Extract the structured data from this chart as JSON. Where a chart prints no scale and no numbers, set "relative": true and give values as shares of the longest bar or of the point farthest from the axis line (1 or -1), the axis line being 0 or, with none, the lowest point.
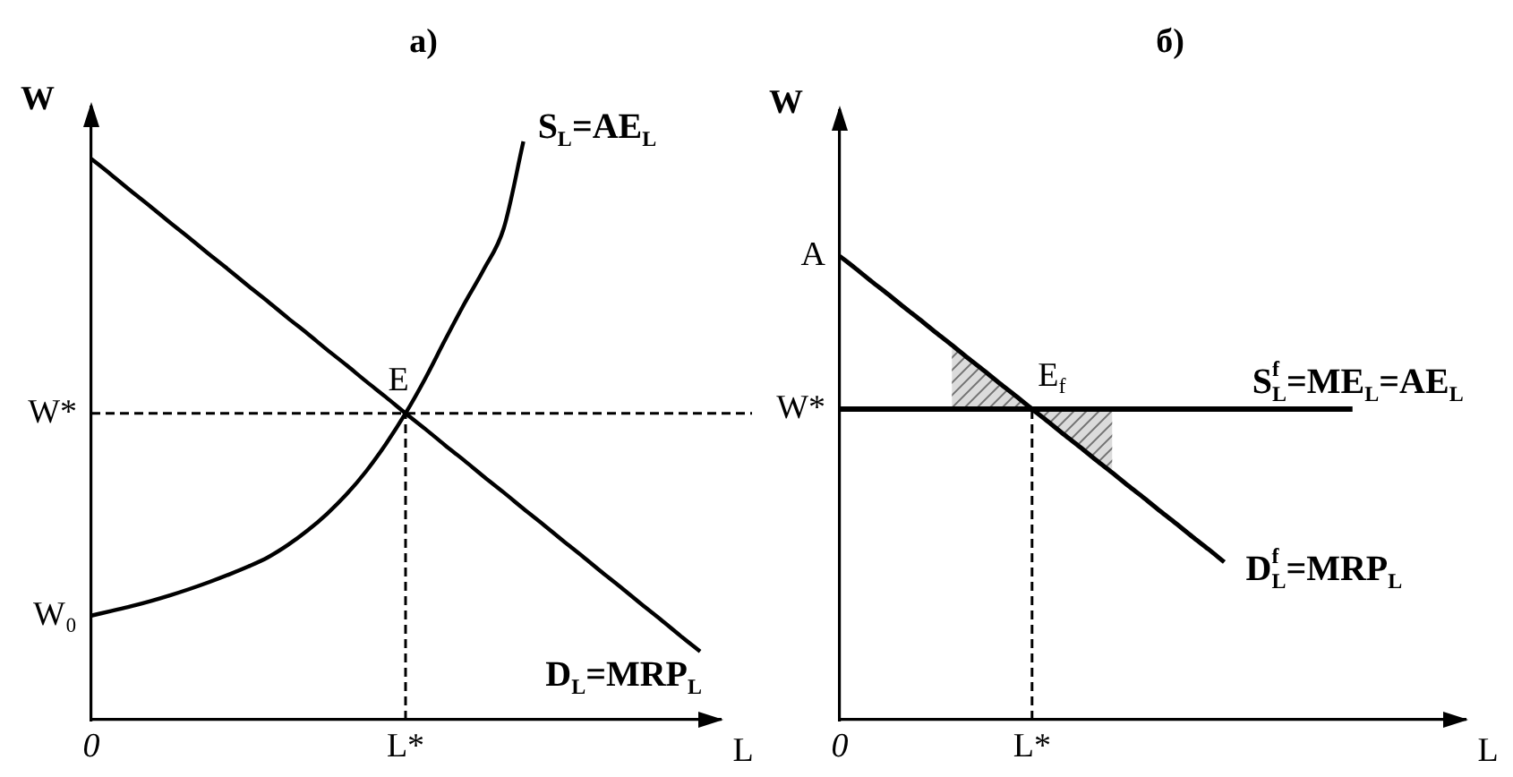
{
  "chart_data": [
    {
      "type": "line",
      "title": "а)",
      "xlabel": "L",
      "ylabel": "W",
      "relative": true,
      "marker": "none",
      "tick_labels": "x",
      "categories": [
        "0",
        null,
        null,
        null,
        null,
        null,
        null,
        null,
        null,
        null,
        null,
        null,
        null,
        null,
        null,
        null,
        "L*",
        null,
        null,
        null,
        null,
        null,
        null,
        null,
        null,
        null,
        null,
        null,
        null,
        null,
        null,
        null,
        null
      ],
      "series": [
        {
          "name": "S$_{L}$=AE$_{L}$",
          "color": "#000000",
          "values": [
            0.18,
            0.188,
            0.196,
            0.205,
            0.215,
            0.226,
            0.238,
            0.251,
            0.265,
            0.281,
            0.302,
            0.327,
            0.356,
            0.39,
            0.43,
            0.477,
            0.53,
            0.59,
            0.656,
            0.72,
            0.78,
            0.85,
            1,
            null,
            null,
            null,
            null,
            null,
            null,
            null,
            null,
            null,
            null
          ]
        },
        {
          "name": "D$_{L}$=MRP$_{L}$",
          "color": "#000000",
          "values": [
            0.97,
            0.943,
            0.915,
            0.888,
            0.86,
            0.833,
            0.805,
            0.778,
            0.75,
            0.723,
            0.695,
            0.668,
            0.64,
            0.613,
            0.585,
            0.558,
            0.53,
            0.503,
            0.475,
            0.448,
            0.42,
            0.393,
            0.365,
            0.338,
            0.31,
            0.283,
            0.255,
            0.228,
            0.2,
            0.173,
            0.145,
            0.118,
            null
          ]
        }
      ],
      "ref_lines": [
        {
          "axis": "y",
          "value": 0.53,
          "label": "W*",
          "line_style": "dashed"
        },
        {
          "axis": "x",
          "value": "L*",
          "line_style": "dashed"
        }
      ],
      "annotations": [
        {
          "text": "E",
          "x": "L*",
          "y": 0.53
        },
        {
          "text": "W₀",
          "x": "0",
          "y": 0.18
        }
      ]
    },
    {
      "type": "line",
      "title": "б)",
      "xlabel": "L",
      "ylabel": "W",
      "relative": true,
      "marker": "none",
      "tick_labels": "x",
      "categories": [
        "0",
        null,
        null,
        null,
        null,
        null,
        null,
        null,
        null,
        null,
        null,
        null,
        "L*",
        null,
        null,
        null,
        null,
        null,
        null,
        null,
        null,
        null,
        null,
        null,
        null,
        null,
        null,
        null,
        null,
        null,
        null,
        null,
        null,
        null,
        null,
        null,
        null,
        null,
        null,
        null
      ],
      "series": [
        {
          "name": "S$_{L}$$^{f}$=ME$_{L}$=AE$_{L}$",
          "color": "#000000",
          "values": [
            0.67,
            0.67,
            0.67,
            0.67,
            0.67,
            0.67,
            0.67,
            0.67,
            0.67,
            0.67,
            0.67,
            0.67,
            0.67,
            0.67,
            0.67,
            0.67,
            0.67,
            0.67,
            0.67,
            0.67,
            0.67,
            0.67,
            0.67,
            0.67,
            0.67,
            0.67,
            0.67,
            0.67,
            0.67,
            0.67,
            0.67,
            0.67,
            0.67,
            null,
            null,
            null,
            null,
            null,
            null,
            null
          ],
          "lower": [
            null,
            null,
            null,
            null,
            null,
            null,
            null,
            0.67,
            0.67,
            0.67,
            0.67,
            0.67,
            0.67,
            0.643,
            0.615,
            0.588,
            0.56,
            0.533,
            null,
            null,
            null,
            null,
            null,
            null,
            null,
            null,
            null,
            null,
            null,
            null,
            null,
            null,
            null,
            null,
            null,
            null,
            null,
            null,
            null,
            null
          ],
          "upper": [
            null,
            null,
            null,
            null,
            null,
            null,
            null,
            0.808,
            0.78,
            0.753,
            0.725,
            0.698,
            0.67,
            0.67,
            0.67,
            0.67,
            0.67,
            0.67,
            null,
            null,
            null,
            null,
            null,
            null,
            null,
            null,
            null,
            null,
            null,
            null,
            null,
            null,
            null,
            null,
            null,
            null,
            null,
            null,
            null,
            null
          ]
        },
        {
          "name": "D$_{L}$$^{f}$=MRP$_{L}$",
          "color": "#000000",
          "values": [
            1,
            0.973,
            0.945,
            0.918,
            0.89,
            0.863,
            0.835,
            0.808,
            0.78,
            0.753,
            0.725,
            0.698,
            0.67,
            0.643,
            0.615,
            0.588,
            0.56,
            0.533,
            0.505,
            0.478,
            0.45,
            0.423,
            0.395,
            0.368,
            0.34,
            null,
            null,
            null,
            null,
            null,
            null,
            null,
            null,
            null,
            null,
            null,
            null,
            null,
            null,
            null
          ]
        }
      ],
      "ref_lines": [
        {
          "axis": "x",
          "value": "L*",
          "line_style": "dashed"
        }
      ],
      "annotations": [
        {
          "text": "E$_{f}$",
          "x": "L*",
          "y": 0.67
        },
        {
          "text": "A",
          "x": "0",
          "y": 1
        },
        {
          "text": "W*",
          "x": "0",
          "y": 0.67
        }
      ]
    }
  ]
}
